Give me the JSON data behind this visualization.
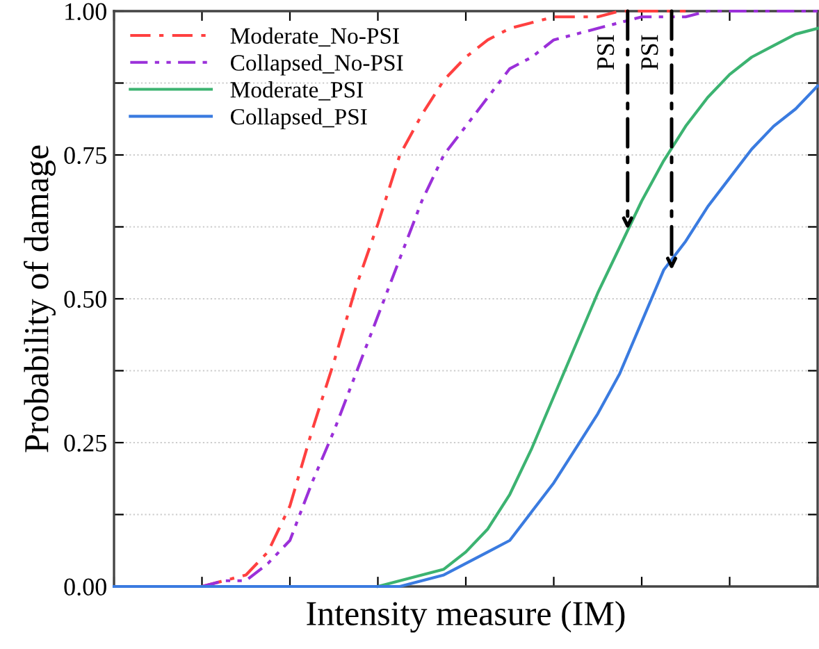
{
  "chart_data": {
    "type": "line",
    "xlabel": "Intensity measure (IM)",
    "ylabel": "Probability of damage",
    "categories": [
      null,
      null,
      null,
      null,
      null,
      null,
      null,
      null,
      null,
      null,
      null,
      null,
      null,
      null,
      null,
      null,
      null,
      null,
      null,
      null,
      null,
      null,
      null,
      null,
      null,
      null,
      null,
      null,
      null,
      null,
      null,
      null,
      null
    ],
    "ylim": [
      0,
      1
    ],
    "yticks": [
      {
        "value": 0,
        "label": "0.00"
      },
      {
        "value": 0.125,
        "label": null
      },
      {
        "value": 0.25,
        "label": "0.25"
      },
      {
        "value": 0.375,
        "label": null
      },
      {
        "value": 0.5,
        "label": "0.50"
      },
      {
        "value": 0.625,
        "label": null
      },
      {
        "value": 0.75,
        "label": "0.75"
      },
      {
        "value": 0.875,
        "label": null
      },
      {
        "value": 1,
        "label": "1.00"
      }
    ],
    "grid": "y",
    "legend": "top left",
    "marker": "none",
    "series": [
      {
        "name": "Moderate_No-PSI",
        "color": "#ff4040",
        "line_style": "dashed",
        "values": [
          null,
          null,
          null,
          null,
          0,
          0.01,
          0.02,
          0.06,
          0.14,
          0.27,
          0.39,
          0.52,
          0.63,
          0.75,
          0.82,
          0.88,
          0.92,
          0.95,
          0.97,
          0.98,
          0.99,
          0.99,
          0.99,
          1,
          1,
          1,
          1,
          null,
          null,
          null,
          null,
          null,
          null
        ]
      },
      {
        "name": "Collapsed_No-PSI",
        "color": "#9b30d9",
        "line_style": "dotted",
        "values": [
          null,
          null,
          null,
          null,
          0,
          0.01,
          0.01,
          0.04,
          0.08,
          0.18,
          0.27,
          0.37,
          0.47,
          0.57,
          0.67,
          0.75,
          0.8,
          0.85,
          0.9,
          0.92,
          0.95,
          0.96,
          0.97,
          0.98,
          0.99,
          0.99,
          0.99,
          1,
          1,
          1,
          1,
          1,
          1
        ]
      },
      {
        "name": "Moderate_PSI",
        "color": "#3cb371",
        "line_style": "solid",
        "values": [
          null,
          null,
          null,
          null,
          null,
          null,
          null,
          null,
          null,
          null,
          null,
          null,
          0,
          0.01,
          0.02,
          0.03,
          0.06,
          0.1,
          0.16,
          0.24,
          0.33,
          0.42,
          0.51,
          0.59,
          0.67,
          0.74,
          0.8,
          0.85,
          0.89,
          0.92,
          0.94,
          0.96,
          0.97
        ]
      },
      {
        "name": "Collapsed_PSI",
        "color": "#3a7be0",
        "line_style": "solid",
        "values": [
          0,
          0,
          0,
          0,
          0,
          0,
          0,
          0,
          0,
          0,
          0,
          0,
          0,
          0,
          0.01,
          0.02,
          0.04,
          0.06,
          0.08,
          0.13,
          0.18,
          0.24,
          0.3,
          0.37,
          0.46,
          0.55,
          0.6,
          0.66,
          0.71,
          0.76,
          0.8,
          0.83,
          0.87
        ]
      }
    ],
    "annotations": [
      "PSI",
      "PSI"
    ]
  }
}
